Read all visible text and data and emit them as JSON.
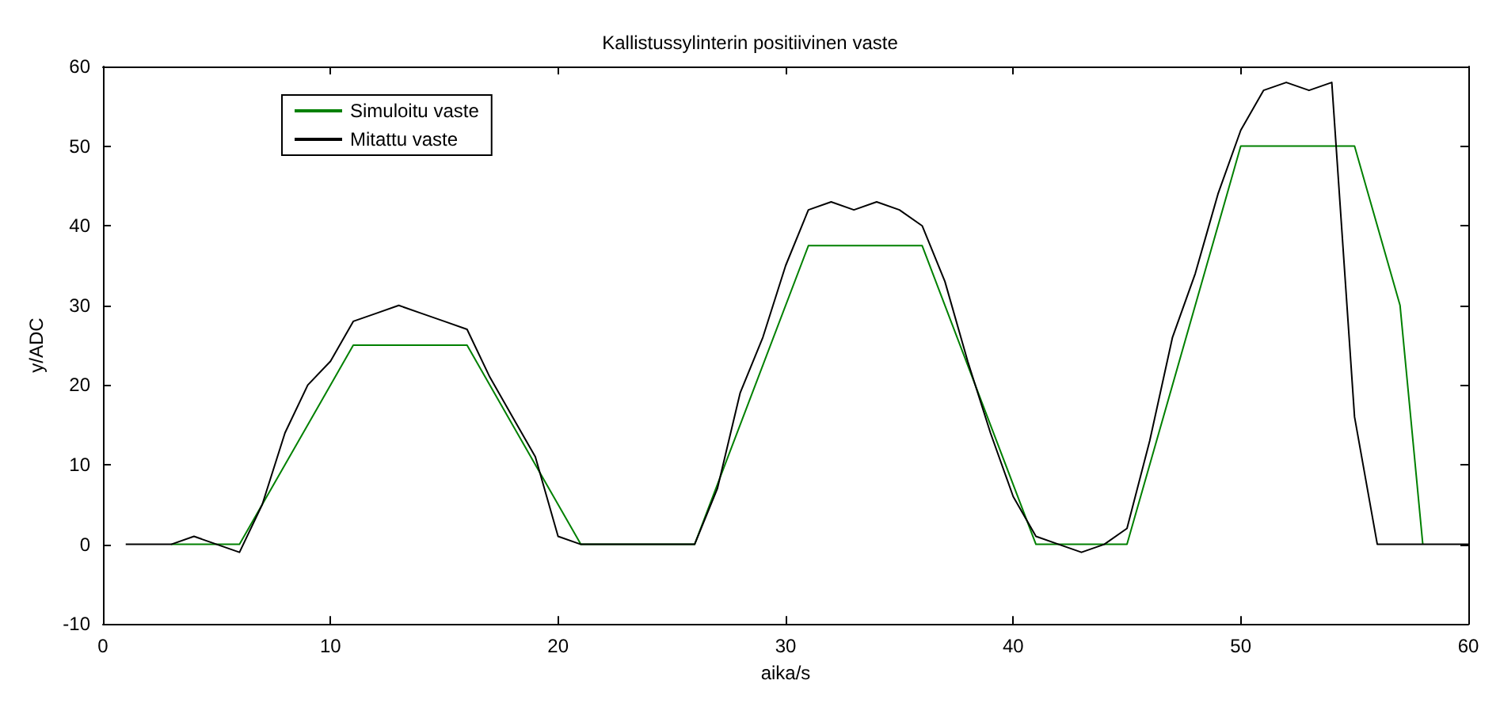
{
  "chart_data": {
    "type": "line",
    "title": "Kallistussylinterin positiivinen vaste",
    "xlabel": "aika/s",
    "ylabel": "y/ADC",
    "xlim": [
      0,
      60
    ],
    "xticks": [
      0,
      10,
      20,
      30,
      40,
      50,
      60
    ],
    "ylim": [
      -10,
      60
    ],
    "yticks": [
      -10,
      0,
      10,
      20,
      30,
      40,
      50,
      60
    ],
    "grid": false,
    "legend": "top left",
    "marker": "none",
    "line_style": "solid",
    "series": [
      {
        "name": "Simuloitu vaste",
        "color": "#008000",
        "x": [
          3,
          6,
          11,
          16,
          21,
          26,
          31,
          36,
          41,
          45,
          50,
          55,
          57,
          58
        ],
        "values": [
          0,
          0,
          25,
          25,
          0,
          0,
          37.5,
          37.5,
          0,
          0,
          50,
          50,
          30,
          0
        ]
      },
      {
        "name": "Mitattu vaste",
        "color": "#000000",
        "x": [
          1,
          2,
          3,
          4,
          5,
          6,
          7,
          8,
          9,
          10,
          11,
          12,
          13,
          14,
          15,
          16,
          17,
          18,
          19,
          20,
          21,
          22,
          23,
          24,
          25,
          26,
          27,
          28,
          29,
          30,
          31,
          32,
          33,
          34,
          35,
          36,
          37,
          38,
          39,
          40,
          41,
          42,
          43,
          44,
          45,
          46,
          47,
          48,
          49,
          50,
          51,
          52,
          53,
          54,
          55,
          56,
          57,
          58,
          59,
          60
        ],
        "values": [
          0,
          0,
          0,
          1,
          0,
          -1,
          5,
          14,
          20,
          23,
          28,
          29,
          30,
          29,
          28,
          27,
          21,
          16,
          11,
          1,
          0,
          0,
          0,
          0,
          0,
          0,
          7,
          19,
          26,
          35,
          42,
          43,
          42,
          43,
          42,
          40,
          33,
          23,
          14,
          6,
          1,
          0,
          -1,
          0,
          2,
          13,
          26,
          34,
          44,
          52,
          57,
          58,
          57,
          58,
          16,
          0,
          0,
          0,
          0,
          0
        ]
      }
    ]
  }
}
